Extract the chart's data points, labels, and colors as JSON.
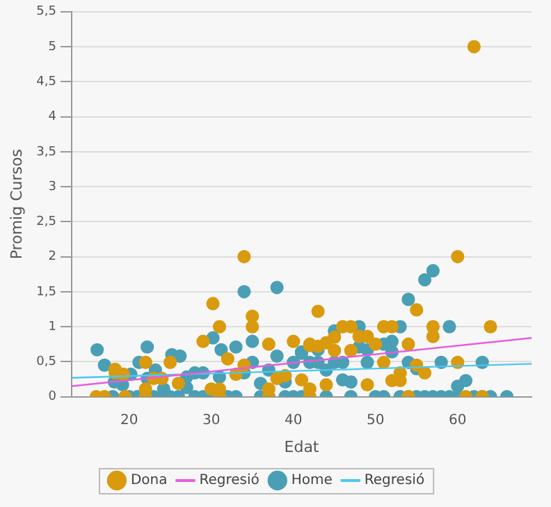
{
  "chart_data": {
    "type": "scatter",
    "xlabel": "Edat",
    "ylabel": "Promig Cursos",
    "xlim": [
      13,
      69
    ],
    "xticks": [
      20,
      30,
      40,
      50,
      60
    ],
    "ylim": [
      0,
      5.5
    ],
    "yticks": [
      0,
      {
        "value": 0.5,
        "label": "0,5"
      },
      1,
      {
        "value": 1.5,
        "label": "1,5"
      },
      2,
      {
        "value": 2.5,
        "label": "2,5"
      },
      3,
      {
        "value": 3.5,
        "label": "3,5"
      },
      4,
      {
        "value": 4.5,
        "label": "4,5"
      },
      5,
      {
        "value": 5.5,
        "label": "5,5"
      }
    ],
    "grid": "y",
    "legend": "bottom",
    "marker": "circle",
    "series": [
      {
        "name": "Dona",
        "color": "#d99a0e",
        "x": [
          62,
          34,
          30.2,
          35,
          35,
          31,
          43,
          60,
          55,
          46,
          47,
          51,
          52,
          57,
          64,
          57,
          48,
          49,
          45,
          42,
          43,
          44,
          47,
          45,
          50,
          54,
          51,
          60,
          55,
          56,
          53,
          53,
          52,
          49,
          44,
          41,
          42,
          37,
          40,
          42,
          29,
          32,
          34,
          33,
          30,
          31,
          22,
          25,
          18.3,
          18.3,
          19.3,
          23,
          24,
          22,
          26,
          38,
          39,
          37,
          16,
          17,
          19.5,
          22,
          31,
          37,
          42,
          54,
          61,
          63
        ],
        "values": [
          5,
          2,
          1.33,
          1.15,
          1,
          1,
          1.22,
          2,
          1.24,
          1,
          1,
          1,
          1,
          1,
          1,
          0.86,
          0.86,
          0.86,
          0.85,
          0.73,
          0.72,
          0.77,
          0.66,
          0.66,
          0.75,
          0.75,
          0.49,
          0.49,
          0.45,
          0.34,
          0.34,
          0.23,
          0.23,
          0.17,
          0.17,
          0.24,
          0.11,
          0.75,
          0.79,
          0.75,
          0.79,
          0.54,
          0.45,
          0.32,
          0.11,
          0.11,
          0.49,
          0.49,
          0.39,
          0.34,
          0.32,
          0.26,
          0.26,
          0.11,
          0.19,
          0.26,
          0.3,
          0.11,
          0,
          0,
          0,
          0,
          0,
          0,
          0,
          0,
          0,
          0
        ]
      },
      {
        "name": "Regresió",
        "type": "line",
        "marker": "none",
        "color": "#e65ce0",
        "x": [
          13,
          69
        ],
        "values": [
          0.15,
          0.84
        ]
      },
      {
        "name": "Home",
        "color": "#4a9fb5",
        "x": [
          34,
          38,
          30.2,
          31.2,
          33,
          35,
          35,
          34,
          31,
          38,
          40,
          41,
          37,
          39,
          36,
          16.1,
          17,
          18.2,
          19.2,
          20.2,
          21.2,
          22.2,
          22.2,
          23.2,
          25.2,
          26.2,
          24.2,
          27,
          27,
          28,
          29,
          57,
          56,
          54,
          59,
          53,
          48,
          45,
          48,
          49,
          51,
          52,
          52,
          41,
          43,
          42,
          43,
          45,
          46,
          49,
          54,
          55,
          58,
          63,
          44,
          46,
          47,
          60,
          61,
          18,
          20,
          21,
          23,
          24,
          25,
          26,
          28,
          29,
          30,
          32,
          33,
          36,
          37,
          39,
          40,
          41,
          44,
          47,
          50,
          51,
          53,
          54,
          55,
          56,
          57,
          58,
          59,
          60,
          62,
          63,
          64,
          66
        ],
        "values": [
          1.5,
          1.56,
          0.84,
          0.67,
          0.71,
          0.79,
          0.49,
          0.34,
          0.28,
          0.58,
          0.49,
          0.64,
          0.38,
          0.21,
          0.19,
          0.67,
          0.45,
          0.21,
          0.17,
          0.32,
          0.49,
          0.71,
          0.26,
          0.38,
          0.6,
          0.58,
          0.11,
          0.28,
          0.13,
          0.34,
          0.34,
          1.8,
          1.67,
          1.39,
          1,
          1,
          1,
          0.94,
          0.71,
          0.67,
          0.75,
          0.79,
          0.64,
          0.62,
          0.67,
          0.49,
          0.49,
          0.49,
          0.49,
          0.49,
          0.49,
          0.4,
          0.49,
          0.49,
          0.38,
          0.24,
          0.21,
          0.15,
          0.23,
          0,
          0,
          0,
          0,
          0,
          0,
          0,
          0,
          0,
          0,
          0,
          0,
          0,
          0,
          0,
          0,
          0,
          0,
          0,
          0,
          0,
          0,
          0,
          0,
          0,
          0,
          0,
          0,
          0,
          0,
          0,
          0,
          0
        ]
      },
      {
        "name": "Regresió",
        "type": "line",
        "marker": "none",
        "color": "#4cc8f0",
        "x": [
          13,
          69
        ],
        "values": [
          0.27,
          0.47
        ]
      }
    ]
  }
}
